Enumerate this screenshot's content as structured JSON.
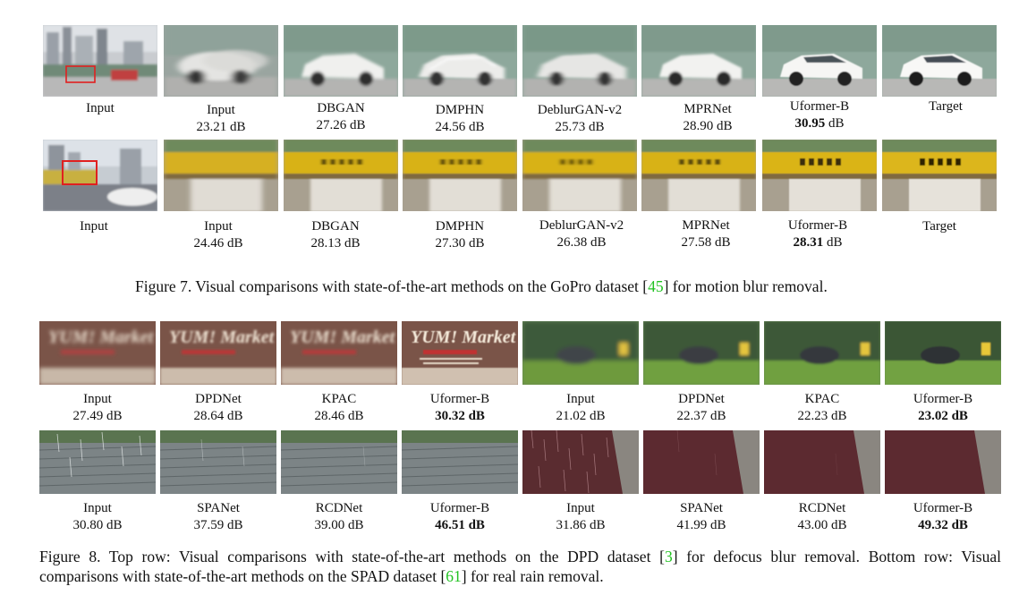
{
  "fig7": {
    "row1": [
      {
        "method": "Input",
        "score": "",
        "bold": ""
      },
      {
        "method": "Input",
        "score": "23.21 dB",
        "bold": ""
      },
      {
        "method": "DBGAN",
        "score": "27.26 dB",
        "bold": ""
      },
      {
        "method": "DMPHN",
        "score": "24.56 dB",
        "bold": ""
      },
      {
        "method": "DeblurGAN-v2",
        "score": "25.73 dB",
        "bold": ""
      },
      {
        "method": "MPRNet",
        "score": "28.90 dB",
        "bold": ""
      },
      {
        "method": "Uformer-B",
        "score": "dB",
        "bold": "30.95"
      },
      {
        "method": "Target",
        "score": "",
        "bold": ""
      }
    ],
    "row2": [
      {
        "method": "Input",
        "score": "",
        "bold": ""
      },
      {
        "method": "Input",
        "score": "24.46 dB",
        "bold": ""
      },
      {
        "method": "DBGAN",
        "score": "28.13 dB",
        "bold": ""
      },
      {
        "method": "DMPHN",
        "score": "27.30 dB",
        "bold": ""
      },
      {
        "method": "DeblurGAN-v2",
        "score": "26.38 dB",
        "bold": ""
      },
      {
        "method": "MPRNet",
        "score": "27.58 dB",
        "bold": ""
      },
      {
        "method": "Uformer-B",
        "score": "dB",
        "bold": "28.31"
      },
      {
        "method": "Target",
        "score": "",
        "bold": ""
      }
    ],
    "caption": {
      "pre": "Figure 7. Visual comparisons with state-of-the-art methods on the GoPro dataset [",
      "cite": "45",
      "post": "] for motion blur removal."
    }
  },
  "fig8": {
    "row1": [
      {
        "method": "Input",
        "score": "27.49 dB"
      },
      {
        "method": "DPDNet",
        "score": "28.64 dB"
      },
      {
        "method": "KPAC",
        "score": "28.46 dB"
      },
      {
        "method": "Uformer-B",
        "score": "30.32 dB"
      },
      {
        "method": "Input",
        "score": "21.02 dB"
      },
      {
        "method": "DPDNet",
        "score": "22.37 dB"
      },
      {
        "method": "KPAC",
        "score": "22.23 dB"
      },
      {
        "method": "Uformer-B",
        "score": "23.02 dB"
      }
    ],
    "row2": [
      {
        "method": "Input",
        "score": "30.80 dB"
      },
      {
        "method": "SPANet",
        "score": "37.59 dB"
      },
      {
        "method": "RCDNet",
        "score": "39.00 dB"
      },
      {
        "method": "Uformer-B",
        "score": "46.51 dB"
      },
      {
        "method": "Input",
        "score": "31.86 dB"
      },
      {
        "method": "SPANet",
        "score": "41.99 dB"
      },
      {
        "method": "RCDNet",
        "score": "43.00 dB"
      },
      {
        "method": "Uformer-B",
        "score": "49.32 dB"
      }
    ],
    "caption": {
      "a": "Figure 8. Top row: Visual comparisons with state-of-the-art methods on the DPD dataset [",
      "cite1": "3",
      "b": "] for defocus blur removal. Bottom row: Visual",
      "c": "comparisons with state-of-the-art methods on the SPAD dataset [",
      "cite2": "61",
      "d": "] for real rain removal."
    }
  },
  "sign_text": "YUM! Market",
  "colors": {
    "citation": "#22c222",
    "crop_box": "#e02020"
  }
}
